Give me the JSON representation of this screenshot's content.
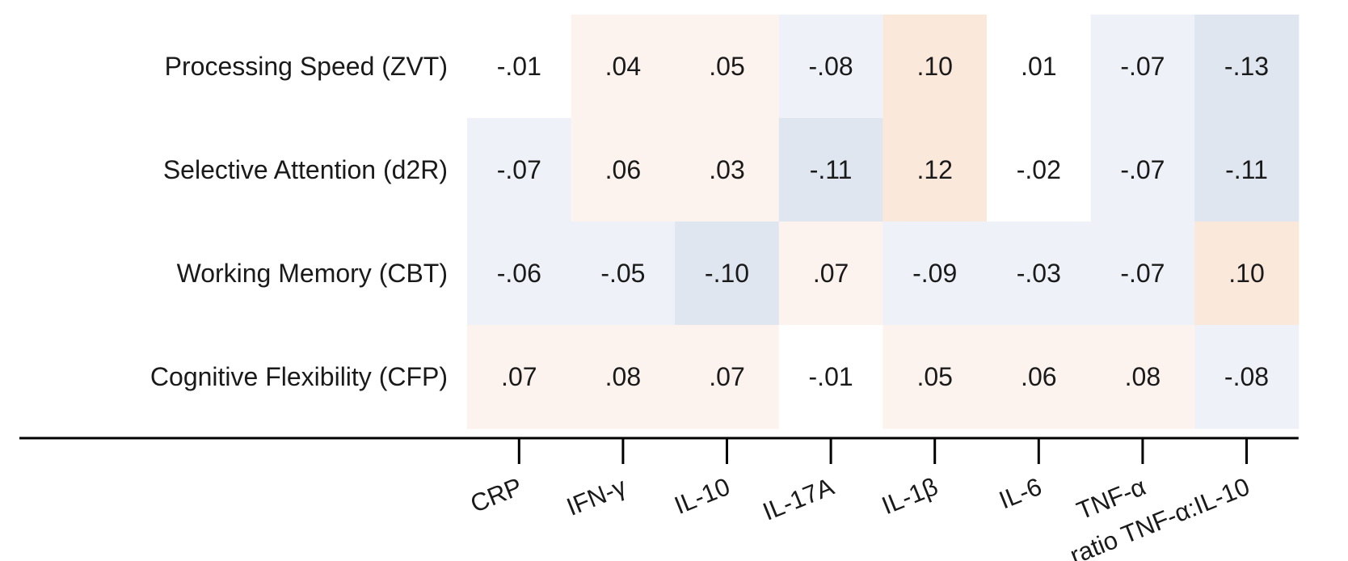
{
  "chart_data": {
    "type": "heatmap",
    "title": "",
    "xlabel": "",
    "ylabel": "",
    "rows": [
      "Processing Speed (ZVT)",
      "Selective Attention (d2R)",
      "Working Memory (CBT)",
      "Cognitive Flexibility (CFP)"
    ],
    "columns": [
      "CRP",
      "IFN-γ",
      "IL-10",
      "IL-17A",
      "IL-1β",
      "IL-6",
      "TNF-α",
      "ratio TNF-α:IL-10"
    ],
    "values": [
      [
        -0.01,
        0.04,
        0.05,
        -0.08,
        0.1,
        0.01,
        -0.07,
        -0.13
      ],
      [
        -0.07,
        0.06,
        0.03,
        -0.11,
        0.12,
        -0.02,
        -0.07,
        -0.11
      ],
      [
        -0.06,
        -0.05,
        -0.1,
        0.07,
        -0.09,
        -0.03,
        -0.07,
        0.1
      ],
      [
        0.07,
        0.08,
        0.07,
        -0.01,
        0.05,
        0.06,
        0.08,
        -0.08
      ]
    ],
    "labels": [
      [
        "-.01",
        ".04",
        ".05",
        "-.08",
        ".10",
        ".01",
        "-.07",
        "-.13"
      ],
      [
        "-.07",
        ".06",
        ".03",
        "-.11",
        ".12",
        "-.02",
        "-.07",
        "-.11"
      ],
      [
        "-.06",
        "-.05",
        "-.10",
        ".07",
        "-.09",
        "-.03",
        "-.07",
        ".10"
      ],
      [
        ".07",
        ".08",
        ".07",
        "-.01",
        ".05",
        ".06",
        ".08",
        "-.08"
      ]
    ],
    "colors": {
      "positive_light": "#fdf3ee",
      "positive_strong": "#fae8da",
      "negative_light": "#eef2f8",
      "negative_strong": "#dfe6f0",
      "neutral": "#ffffff"
    }
  }
}
